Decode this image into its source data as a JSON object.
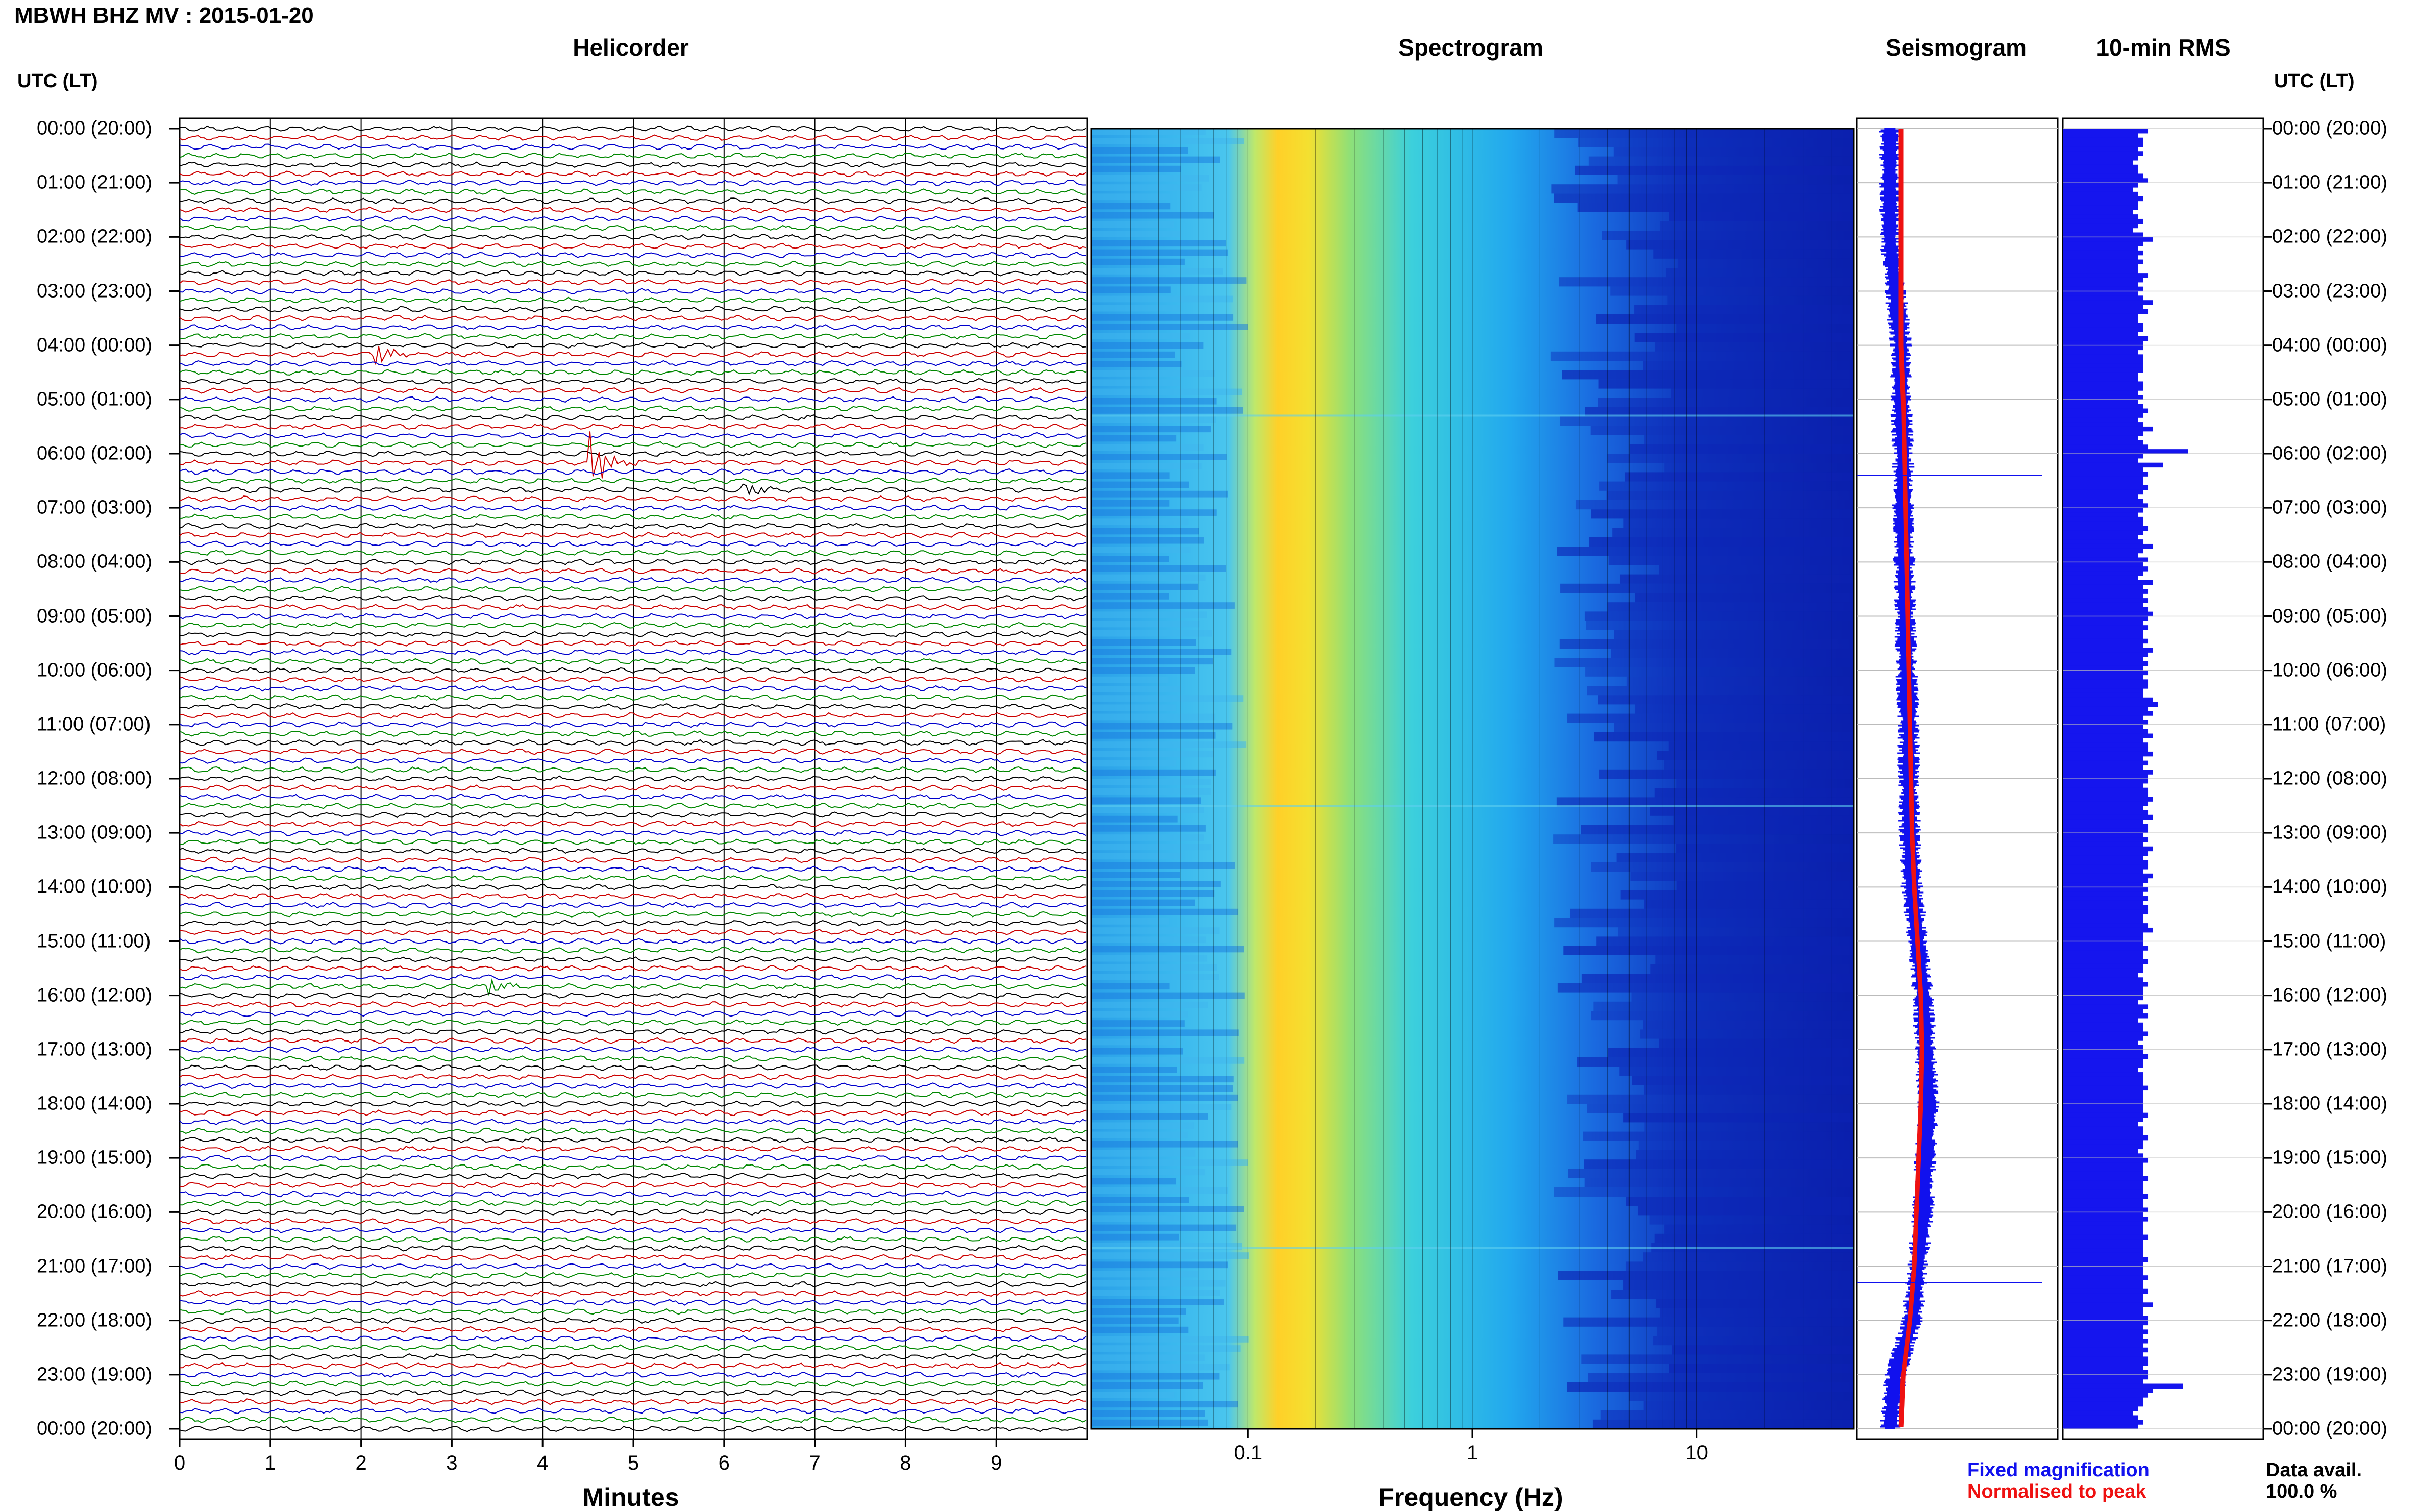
{
  "header": {
    "title": "MBWH BHZ MV : 2015-01-20"
  },
  "panels": {
    "helicorder": "Helicorder",
    "spectrogram": "Spectrogram",
    "seismogram": "Seismogram",
    "rms": "10-min RMS"
  },
  "axis": {
    "utc_label_left": "UTC (LT)",
    "utc_label_right": "UTC (LT)",
    "minutes_title": "Minutes",
    "frequency_title": "Frequency (Hz)",
    "minute_ticks": [
      "0",
      "1",
      "2",
      "3",
      "4",
      "5",
      "6",
      "7",
      "8",
      "9"
    ],
    "frequency_ticks": [
      "0.1",
      "1",
      "10"
    ]
  },
  "hour_labels": [
    "00:00 (20:00)",
    "01:00 (21:00)",
    "02:00 (22:00)",
    "03:00 (23:00)",
    "04:00 (00:00)",
    "05:00 (01:00)",
    "06:00 (02:00)",
    "07:00 (03:00)",
    "08:00 (04:00)",
    "09:00 (05:00)",
    "10:00 (06:00)",
    "11:00 (07:00)",
    "12:00 (08:00)",
    "13:00 (09:00)",
    "14:00 (10:00)",
    "15:00 (11:00)",
    "16:00 (12:00)",
    "17:00 (13:00)",
    "18:00 (14:00)",
    "19:00 (15:00)",
    "20:00 (16:00)",
    "21:00 (17:00)",
    "22:00 (18:00)",
    "23:00 (19:00)",
    "00:00 (20:00)"
  ],
  "legend": {
    "fixed": "Fixed magnification",
    "normalised": "Normalised to peak",
    "data_avail_label": "Data avail.",
    "data_avail_value": "100.0 %"
  },
  "colors": {
    "trace_cycle": [
      "#000000",
      "#cc0000",
      "#0000cc",
      "#008800"
    ],
    "fixed": "#1111ee",
    "normalised": "#ee1111",
    "rms_bar": "#1515ee"
  },
  "chart_data": [
    {
      "type": "line",
      "name": "helicorder",
      "xlabel": "Minutes",
      "xlim": [
        0,
        10
      ],
      "rows_per_hour": 6,
      "hours": 24,
      "events": [
        {
          "hour": 4.1,
          "minute": 2.15,
          "amplitude": 0.8
        },
        {
          "hour": 6.2,
          "minute": 4.5,
          "amplitude": 2.2
        },
        {
          "hour": 6.7,
          "minute": 6.2,
          "amplitude": 0.7
        },
        {
          "hour": 15.9,
          "minute": 3.4,
          "amplitude": 0.6
        }
      ]
    },
    {
      "type": "heatmap",
      "name": "spectrogram",
      "xlabel": "Frequency (Hz)",
      "xscale": "log",
      "xlim": [
        0.02,
        50
      ],
      "peak_frequency_hz": 0.22,
      "hours": 24
    },
    {
      "type": "line",
      "name": "seismogram",
      "series": [
        {
          "name": "Fixed magnification",
          "values": [
            -0.1,
            -0.1,
            -0.1,
            -0.05,
            0,
            0,
            0.02,
            0.02,
            0.03,
            0.04,
            0.05,
            0.07,
            0.07,
            0.08,
            0.1,
            0.15,
            0.2,
            0.22,
            0.25,
            0.22,
            0.2,
            0.15,
            0.1,
            -0.05,
            -0.1
          ]
        },
        {
          "name": "Normalised to peak",
          "values": [
            0,
            0,
            0,
            0,
            0,
            0.02,
            0.03,
            0.04,
            0.05,
            0.06,
            0.07,
            0.08,
            0.09,
            0.1,
            0.12,
            0.15,
            0.18,
            0.19,
            0.18,
            0.16,
            0.14,
            0.12,
            0.08,
            0.02,
            0
          ]
        }
      ]
    },
    {
      "type": "bar",
      "name": "10-min RMS",
      "orientation": "horizontal",
      "values": [
        1.7,
        1.5,
        1.6,
        1.6,
        1.5,
        1.6,
        1.5,
        1.4,
        1.5,
        1.5,
        1.6,
        1.7,
        1.5,
        1.4,
        1.5,
        1.6,
        1.5,
        1.5,
        1.4,
        1.5,
        1.6,
        1.5,
        1.4,
        1.6,
        1.8,
        1.6,
        1.5,
        1.6,
        1.5,
        1.6,
        1.5,
        1.5,
        1.7,
        1.6,
        1.5,
        1.6,
        1.5,
        1.6,
        1.8,
        1.6,
        1.7,
        1.5,
        1.5,
        1.6,
        1.6,
        1.5,
        1.7,
        1.6,
        1.6,
        1.5,
        1.6,
        1.6,
        1.6,
        1.6,
        1.5,
        1.5,
        1.6,
        1.6,
        1.5,
        1.6,
        1.5,
        1.6,
        1.7,
        1.6,
        1.5,
        1.6,
        1.8,
        1.6,
        1.5,
        1.6,
        1.7,
        2.5,
        1.6,
        1.5,
        2.0,
        1.6,
        1.7,
        1.6,
        1.6,
        1.7,
        1.6,
        1.5,
        1.6,
        1.7,
        1.6,
        1.5,
        1.6,
        1.6,
        1.7,
        1.6,
        1.5,
        1.6,
        1.8,
        1.6,
        1.5,
        1.7,
        1.6,
        1.7,
        1.6,
        1.5,
        1.8,
        1.6,
        1.7,
        1.6,
        1.7,
        1.6,
        1.7,
        1.8,
        1.7,
        1.6,
        1.7,
        1.6,
        1.6,
        1.7,
        1.6,
        1.8,
        1.7,
        1.6,
        1.7,
        1.6,
        1.7,
        1.6,
        1.7,
        1.7,
        1.6,
        1.6,
        1.8,
        1.9,
        1.7,
        1.8,
        1.6,
        1.7,
        1.6,
        1.7,
        1.8,
        1.6,
        1.7,
        1.7,
        1.8,
        1.6,
        1.7,
        1.6,
        1.8,
        1.7,
        1.7,
        1.6,
        1.7,
        1.7,
        1.8,
        1.7,
        1.6,
        1.7,
        1.8,
        1.6,
        1.7,
        1.7,
        1.6,
        1.7,
        1.6,
        1.8,
        1.7,
        1.6,
        1.7,
        1.7,
        1.6,
        1.8,
        1.7,
        1.6,
        1.7,
        1.6,
        1.7,
        1.6,
        1.7,
        1.7,
        1.6,
        1.6,
        1.7,
        1.8,
        1.6,
        1.6,
        1.6,
        1.7,
        1.6,
        1.6,
        1.7,
        1.6,
        1.6,
        1.5,
        1.6,
        1.7,
        1.6,
        1.6,
        1.6,
        1.5,
        1.7,
        1.6,
        1.7,
        1.5,
        1.6,
        1.6,
        1.7,
        1.6,
        1.5,
        1.6,
        1.6,
        1.7,
        1.6,
        1.6,
        1.5,
        1.6,
        1.6,
        1.6,
        1.7,
        1.6,
        1.6,
        1.6,
        1.6,
        1.6,
        1.7,
        1.6,
        1.5,
        1.6,
        1.6,
        1.7,
        1.6,
        1.6,
        1.5,
        1.6,
        1.7,
        1.6,
        1.6,
        1.6,
        1.7,
        1.6,
        1.6,
        1.6,
        1.7,
        1.6,
        1.6,
        1.7,
        1.6,
        1.7,
        1.6,
        1.6,
        1.6,
        1.7,
        1.6,
        1.6,
        1.6,
        1.6,
        1.7,
        1.6,
        1.6,
        1.6,
        1.7,
        1.6,
        1.6,
        1.7,
        1.6,
        1.6,
        1.8,
        1.6,
        1.6,
        1.7,
        1.7,
        1.6,
        1.7,
        1.6,
        1.7,
        1.6,
        1.7,
        1.6,
        1.7,
        1.7,
        1.6,
        1.7,
        1.7,
        1.6,
        2.4,
        1.8,
        1.7,
        1.6,
        1.6,
        1.5,
        1.4,
        1.5,
        1.6,
        1.5
      ]
    }
  ]
}
